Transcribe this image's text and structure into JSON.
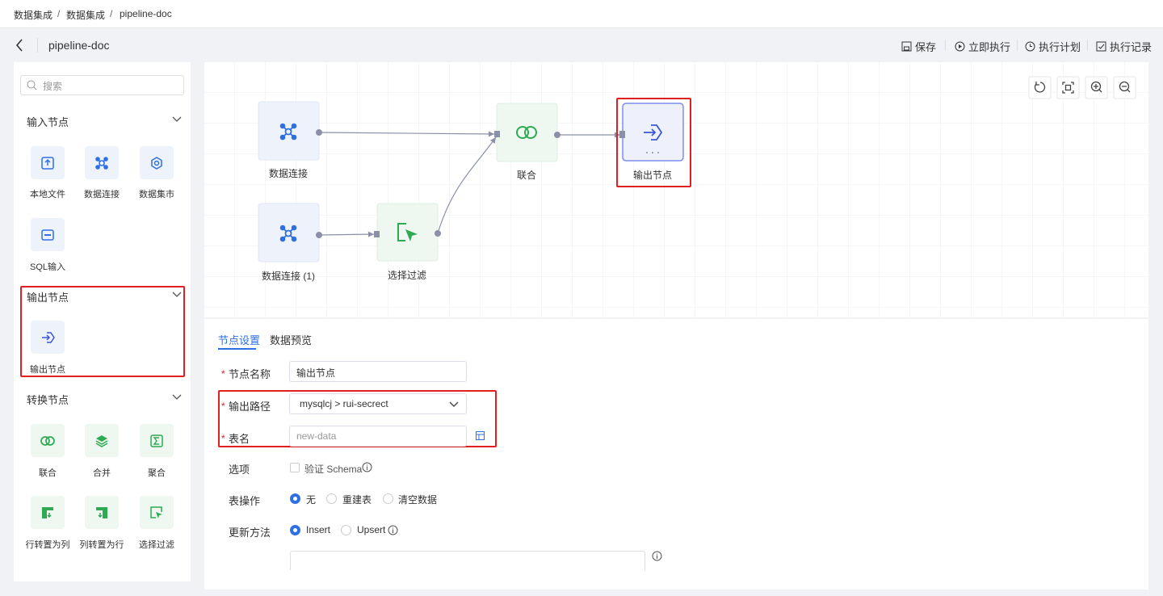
{
  "breadcrumb": {
    "items": [
      "数据集成",
      "数据集成",
      "pipeline-doc"
    ],
    "separator": "/"
  },
  "header": {
    "title": "pipeline-doc",
    "actions": [
      "保存",
      "立即执行",
      "执行计划",
      "执行记录"
    ]
  },
  "sidebar": {
    "search_placeholder": "搜索",
    "groups": [
      {
        "title": "输入节点",
        "items": [
          "本地文件",
          "数据连接",
          "数据集市",
          "SQL输入"
        ]
      },
      {
        "title": "输出节点",
        "items": [
          "输出节点"
        ]
      },
      {
        "title": "转换节点",
        "items": [
          "联合",
          "合并",
          "聚合",
          "行转置为列",
          "列转置为行",
          "选择过滤"
        ]
      }
    ]
  },
  "canvas": {
    "nodes": [
      {
        "label": "数据连接"
      },
      {
        "label": "数据连接 (1)"
      },
      {
        "label": "选择过滤"
      },
      {
        "label": "联合"
      },
      {
        "label": "输出节点"
      }
    ]
  },
  "panel": {
    "tabs": [
      "节点设置",
      "数据预览"
    ],
    "required_mark": "*",
    "fields": {
      "name": {
        "label": "节点名称",
        "value": "输出节点"
      },
      "path": {
        "label": "输出路径",
        "value": "mysqlcj > rui-secrect"
      },
      "table": {
        "label": "表名",
        "placeholder": "new-data"
      },
      "options": {
        "label": "选项",
        "checkbox": "验证 Schema"
      },
      "table_op": {
        "label": "表操作",
        "choices": [
          "无",
          "重建表",
          "清空数据"
        ]
      },
      "update": {
        "label": "更新方法",
        "choices": [
          "Insert",
          "Upsert"
        ]
      }
    }
  }
}
